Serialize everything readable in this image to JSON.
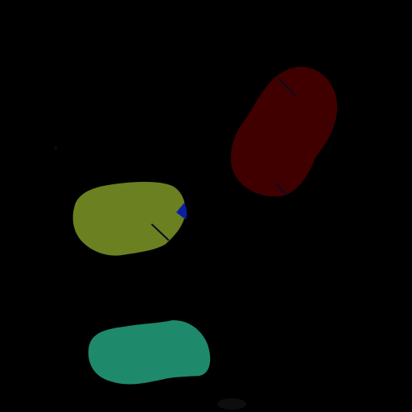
{
  "scene": {
    "background_color": "#000000"
  },
  "regions": [
    {
      "label": "red-blob",
      "color": "#400000"
    },
    {
      "label": "olive-blob",
      "color": "#6b8020"
    },
    {
      "label": "teal-blob",
      "color": "#1e8a6b"
    },
    {
      "label": "blue-patch",
      "color": "#0b1ea0"
    }
  ],
  "seams": {
    "color": "#0b0b22"
  }
}
